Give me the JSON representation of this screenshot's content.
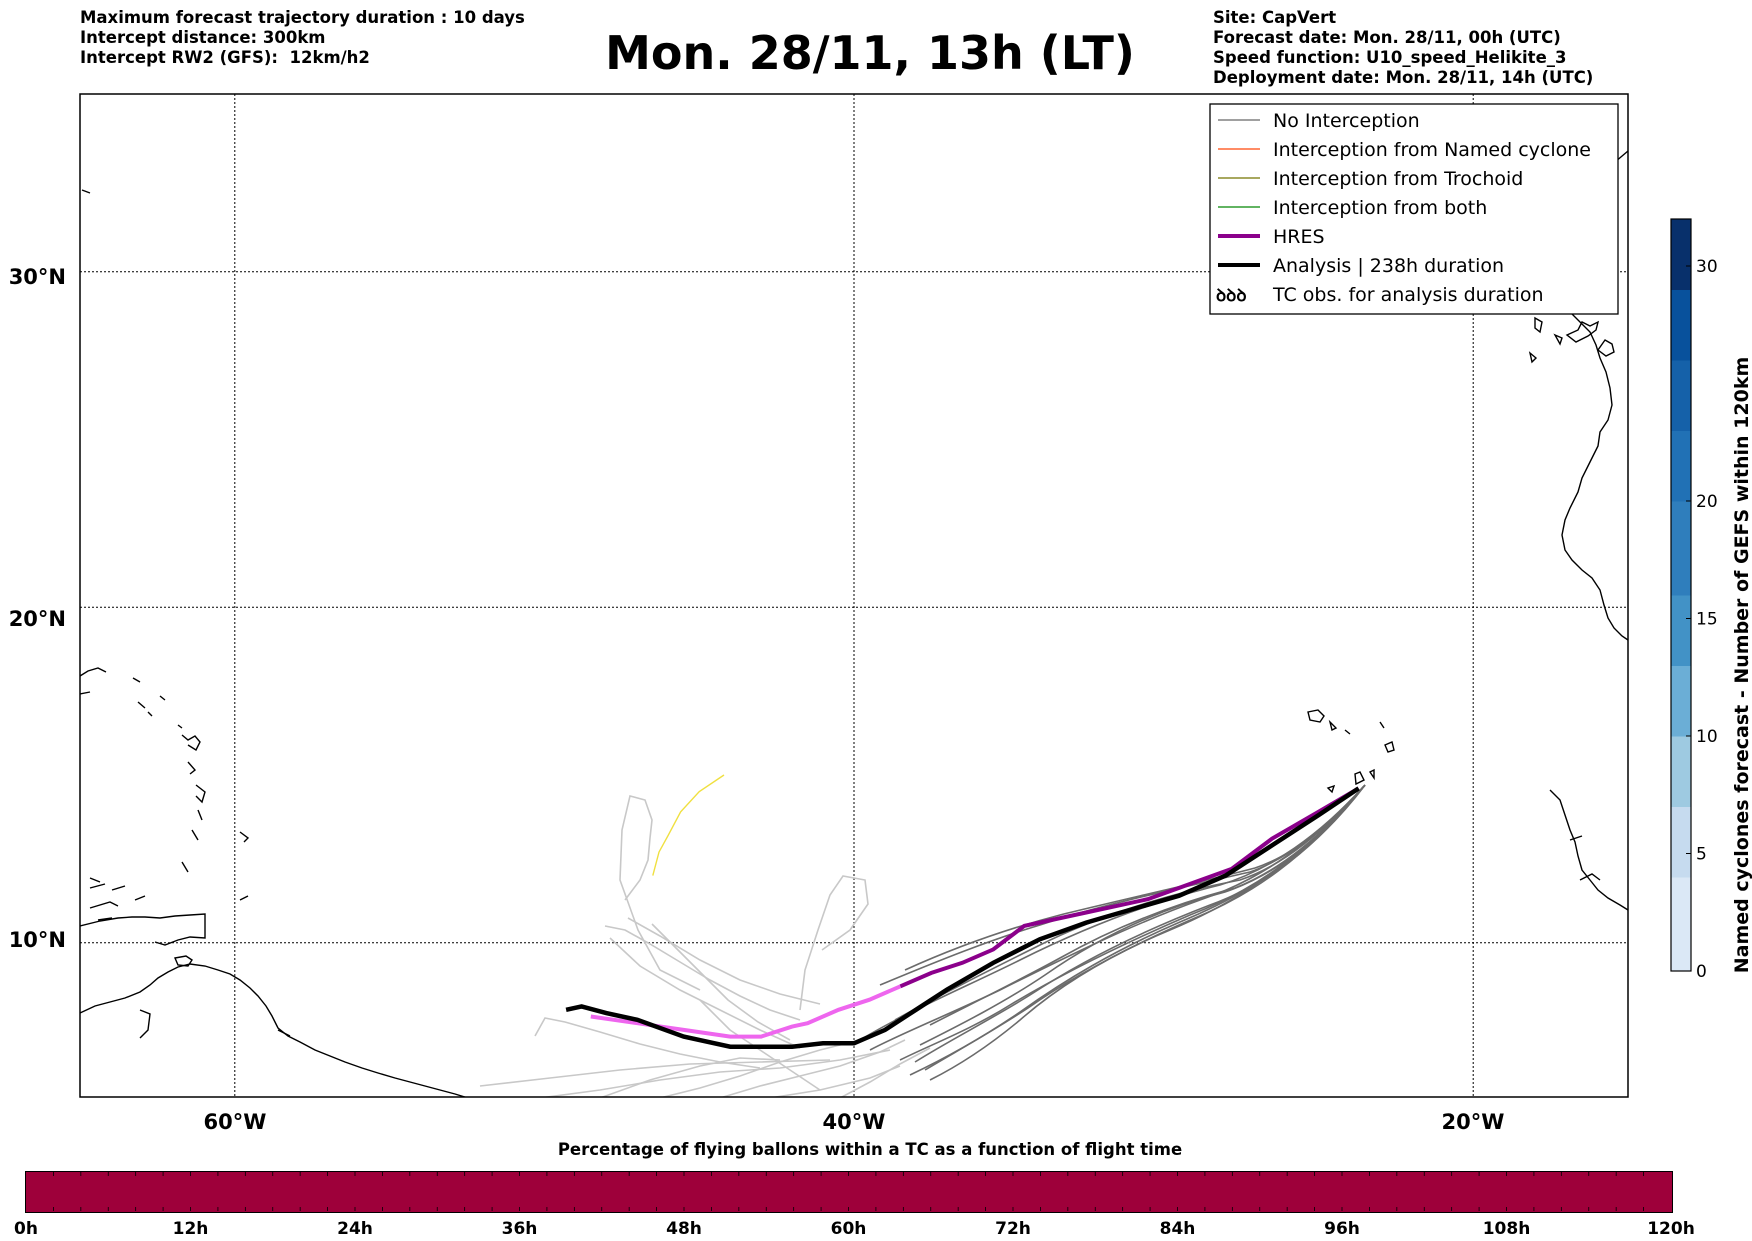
{
  "header": {
    "left": [
      "Maximum forecast trajectory duration : 10 days",
      "Intercept distance: 300km",
      "Intercept RW2 (GFS):  12km/h2"
    ],
    "title": "Mon. 28/11, 13h (LT)",
    "right": [
      "Site: CapVert",
      "Forecast date: Mon. 28/11, 00h (UTC)",
      "Speed function: U10_speed_Helikite_3",
      "Deployment date: Mon. 28/11, 14h (UTC)"
    ]
  },
  "map": {
    "lat_labels": [
      "30°N",
      "20°N",
      "10°N"
    ],
    "lon_labels": [
      "60°W",
      "40°W",
      "20°W"
    ],
    "gridline_lats": [
      30,
      20,
      10
    ],
    "gridline_lons": [
      -60,
      -40,
      -20
    ],
    "extent": {
      "lon_min": -65,
      "lon_max": -15,
      "lat_min": 5.4,
      "lat_max": 35.3
    }
  },
  "legend": {
    "items": [
      {
        "label": "No Interception",
        "color": "#808080",
        "style": "thin"
      },
      {
        "label": "Interception from Named cyclone",
        "color": "#ff6633",
        "style": "thin"
      },
      {
        "label": "Interception from Trochoid",
        "color": "#8b8b2a",
        "style": "thin"
      },
      {
        "label": "Interception from both",
        "color": "#2e9b2e",
        "style": "thin"
      },
      {
        "label": "HRES",
        "color": "#8b008b",
        "style": "thick"
      },
      {
        "label": "Analysis | 238h duration",
        "color": "#000000",
        "style": "thick"
      },
      {
        "label": "TC obs. for analysis duration",
        "color": "#000000",
        "style": "symbol",
        "symbol": "ꝺꝺꝺ"
      }
    ]
  },
  "colorbar_vertical": {
    "label": "Named cyclones forecast - Number of GEFS within 120km",
    "ticks": [
      0,
      5,
      10,
      15,
      20,
      30
    ],
    "max": 32
  },
  "colorbar_horizontal": {
    "title": "Percentage of flying ballons within a TC as a function of flight time",
    "ticks": [
      "0h",
      "12h",
      "24h",
      "36h",
      "48h",
      "60h",
      "72h",
      "84h",
      "96h",
      "108h",
      "120h"
    ],
    "color": "#9e003a"
  },
  "trajectories": {
    "origin": [
      -23.7,
      14.6
    ],
    "analysis": [
      [
        -23.7,
        14.6
      ],
      [
        -25,
        13.8
      ],
      [
        -26.5,
        12.9
      ],
      [
        -28,
        12.0
      ],
      [
        -29.5,
        11.4
      ],
      [
        -31,
        11.0
      ],
      [
        -32.5,
        10.6
      ],
      [
        -34,
        10.1
      ],
      [
        -35.5,
        9.4
      ],
      [
        -37,
        8.6
      ],
      [
        -38,
        8.0
      ],
      [
        -39,
        7.4
      ],
      [
        -40,
        7.0
      ],
      [
        -41,
        7.0
      ],
      [
        -42,
        6.9
      ],
      [
        -44,
        6.9
      ],
      [
        -45.5,
        7.2
      ],
      [
        -47,
        7.7
      ],
      [
        -48,
        7.9
      ],
      [
        -48.8,
        8.1
      ],
      [
        -49.3,
        8.0
      ]
    ],
    "hres": [
      [
        -23.7,
        14.6
      ],
      [
        -25,
        13.9
      ],
      [
        -26.5,
        13.1
      ],
      [
        -27.8,
        12.2
      ],
      [
        -29,
        11.8
      ],
      [
        -30.5,
        11.3
      ],
      [
        -32.5,
        10.9
      ],
      [
        -34.5,
        10.5
      ],
      [
        -35.5,
        9.8
      ],
      [
        -36.5,
        9.4
      ],
      [
        -37.5,
        9.1
      ],
      [
        -38.5,
        8.7
      ],
      [
        -39.5,
        8.3
      ],
      [
        -40.5,
        8.0
      ],
      [
        -41.5,
        7.6
      ],
      [
        -42,
        7.5
      ],
      [
        -43,
        7.2
      ],
      [
        -44,
        7.2
      ],
      [
        -45.5,
        7.4
      ],
      [
        -47,
        7.6
      ],
      [
        -48.5,
        7.8
      ]
    ],
    "trochoid": [
      [
        -44.2,
        15.0
      ],
      [
        -45.0,
        14.5
      ],
      [
        -45.6,
        13.9
      ],
      [
        -46.0,
        13.2
      ],
      [
        -46.3,
        12.7
      ],
      [
        -46.5,
        12.0
      ]
    ]
  }
}
